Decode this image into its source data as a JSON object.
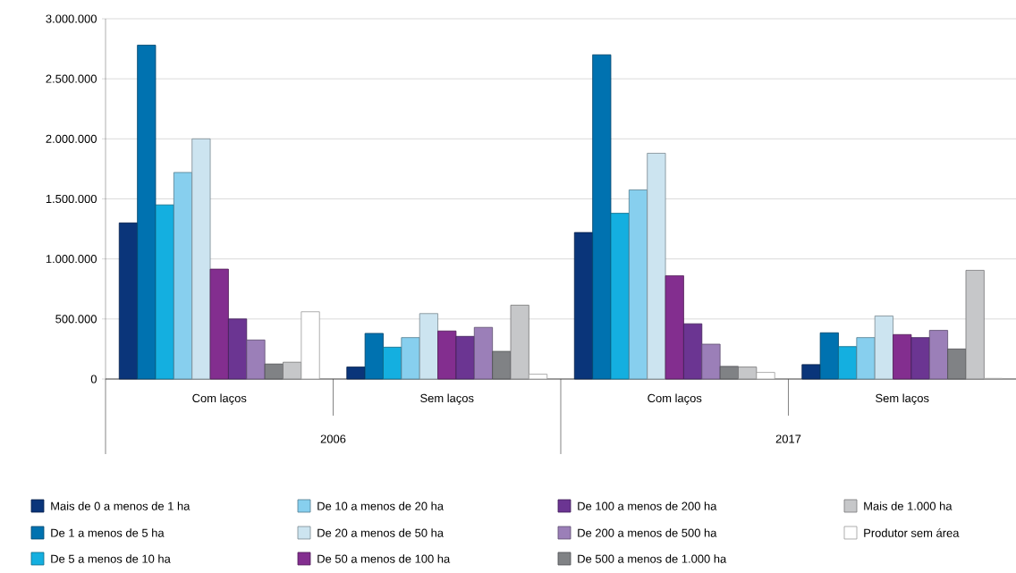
{
  "chart_data": {
    "type": "bar",
    "categories": [
      "Com laços",
      "Sem laços",
      "Com laços",
      "Sem laços"
    ],
    "annotations": [
      "2006",
      "2017"
    ],
    "ylim": [
      0,
      3000000
    ],
    "yticks": [
      0,
      {
        "value": 500000,
        "label": "500.000"
      },
      {
        "value": 1000000,
        "label": "1.000.000"
      },
      {
        "value": 1500000,
        "label": "1.500.000"
      },
      {
        "value": 2000000,
        "label": "2.000.000"
      },
      {
        "value": 2500000,
        "label": "2.500.000"
      },
      {
        "value": 3000000,
        "label": "3.000.000"
      }
    ],
    "grid": "y",
    "legend": "bottom",
    "series": [
      {
        "name": "Mais de 0 a menos de 1 ha",
        "color": "#0a357a",
        "values": [
          1300000,
          100000,
          1220000,
          120000
        ]
      },
      {
        "name": "De 1 a menos de 5 ha",
        "color": "#0072b0",
        "values": [
          2780000,
          380000,
          2700000,
          385000
        ]
      },
      {
        "name": "De 5 a menos de 10 ha",
        "color": "#14afe0",
        "values": [
          1450000,
          265000,
          1380000,
          270000
        ]
      },
      {
        "name": "De 10 a menos de 20 ha",
        "color": "#87cfee",
        "values": [
          1720000,
          345000,
          1575000,
          345000
        ]
      },
      {
        "name": "De 20 a menos de 50 ha",
        "color": "#cce4f0",
        "values": [
          2000000,
          545000,
          1880000,
          525000
        ]
      },
      {
        "name": "De 50 a menos de 100 ha",
        "color": "#832e8f",
        "values": [
          915000,
          400000,
          860000,
          370000
        ]
      },
      {
        "name": "De 100 a menos de 200 ha",
        "color": "#6b3592",
        "values": [
          500000,
          355000,
          460000,
          345000
        ]
      },
      {
        "name": "De 200 a menos de 500 ha",
        "color": "#9b7fb8",
        "values": [
          325000,
          430000,
          290000,
          405000
        ]
      },
      {
        "name": "De 500 a menos de 1.000 ha",
        "color": "#808285",
        "values": [
          125000,
          230000,
          105000,
          250000
        ]
      },
      {
        "name": "Mais de 1.000 ha",
        "color": "#c6c7c9",
        "values": [
          140000,
          615000,
          100000,
          905000
        ]
      },
      {
        "name": "Produtor sem área",
        "color": "#ffffff",
        "values": [
          560000,
          40000,
          55000,
          5000
        ]
      }
    ]
  }
}
